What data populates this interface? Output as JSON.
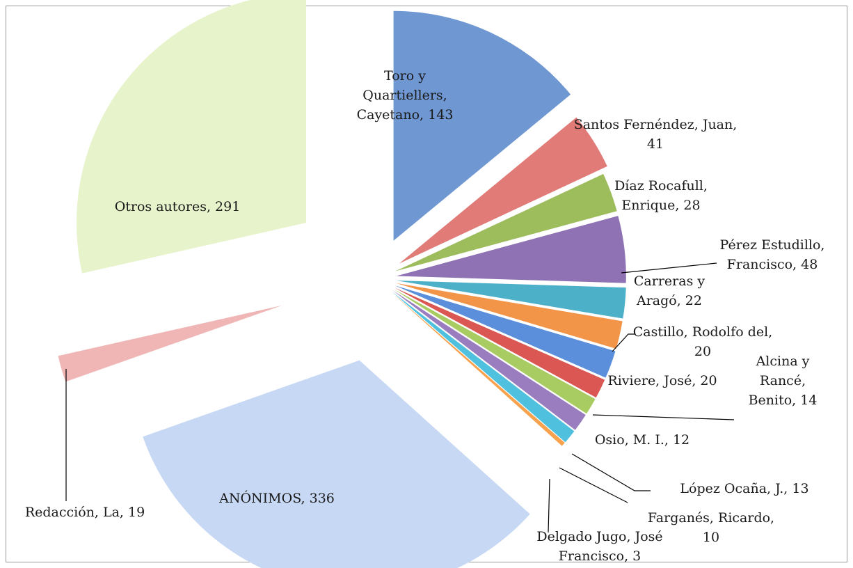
{
  "chart_data": {
    "type": "pie",
    "labels": [
      "Toro y Quartiellers, Cayetano, 143",
      "Santos Fernéndez, Juan, 41",
      "Díaz Rocafull, Enrique, 28",
      "Pérez Estudillo, Francisco, 48",
      "Carreras y Aragó, 22",
      "Castillo, Rodolfo del, 20",
      "Riviere, José, 20",
      "Alcina y Rancé, Benito, 14",
      "Osio, M. I., 12",
      "López Ocaña, J., 13",
      "Farganés, Ricardo, 10",
      "Delgado Jugo, José Francisco, 3",
      "ANÓNIMOS, 336",
      "Redacción, La, 19",
      "Otros autores, 291"
    ],
    "values": [
      143,
      41,
      28,
      48,
      22,
      20,
      20,
      14,
      12,
      13,
      10,
      3,
      336,
      19,
      291
    ],
    "colors": [
      "#6f97d2",
      "#e07b78",
      "#9dbd5c",
      "#8e72b3",
      "#4db0c9",
      "#f39549",
      "#5b8fdb",
      "#db5753",
      "#a9cc62",
      "#9a7dbf",
      "#4fc1de",
      "#f8a24d",
      "#c6d8f3",
      "#efb6b5",
      "#e7f3cb"
    ]
  }
}
